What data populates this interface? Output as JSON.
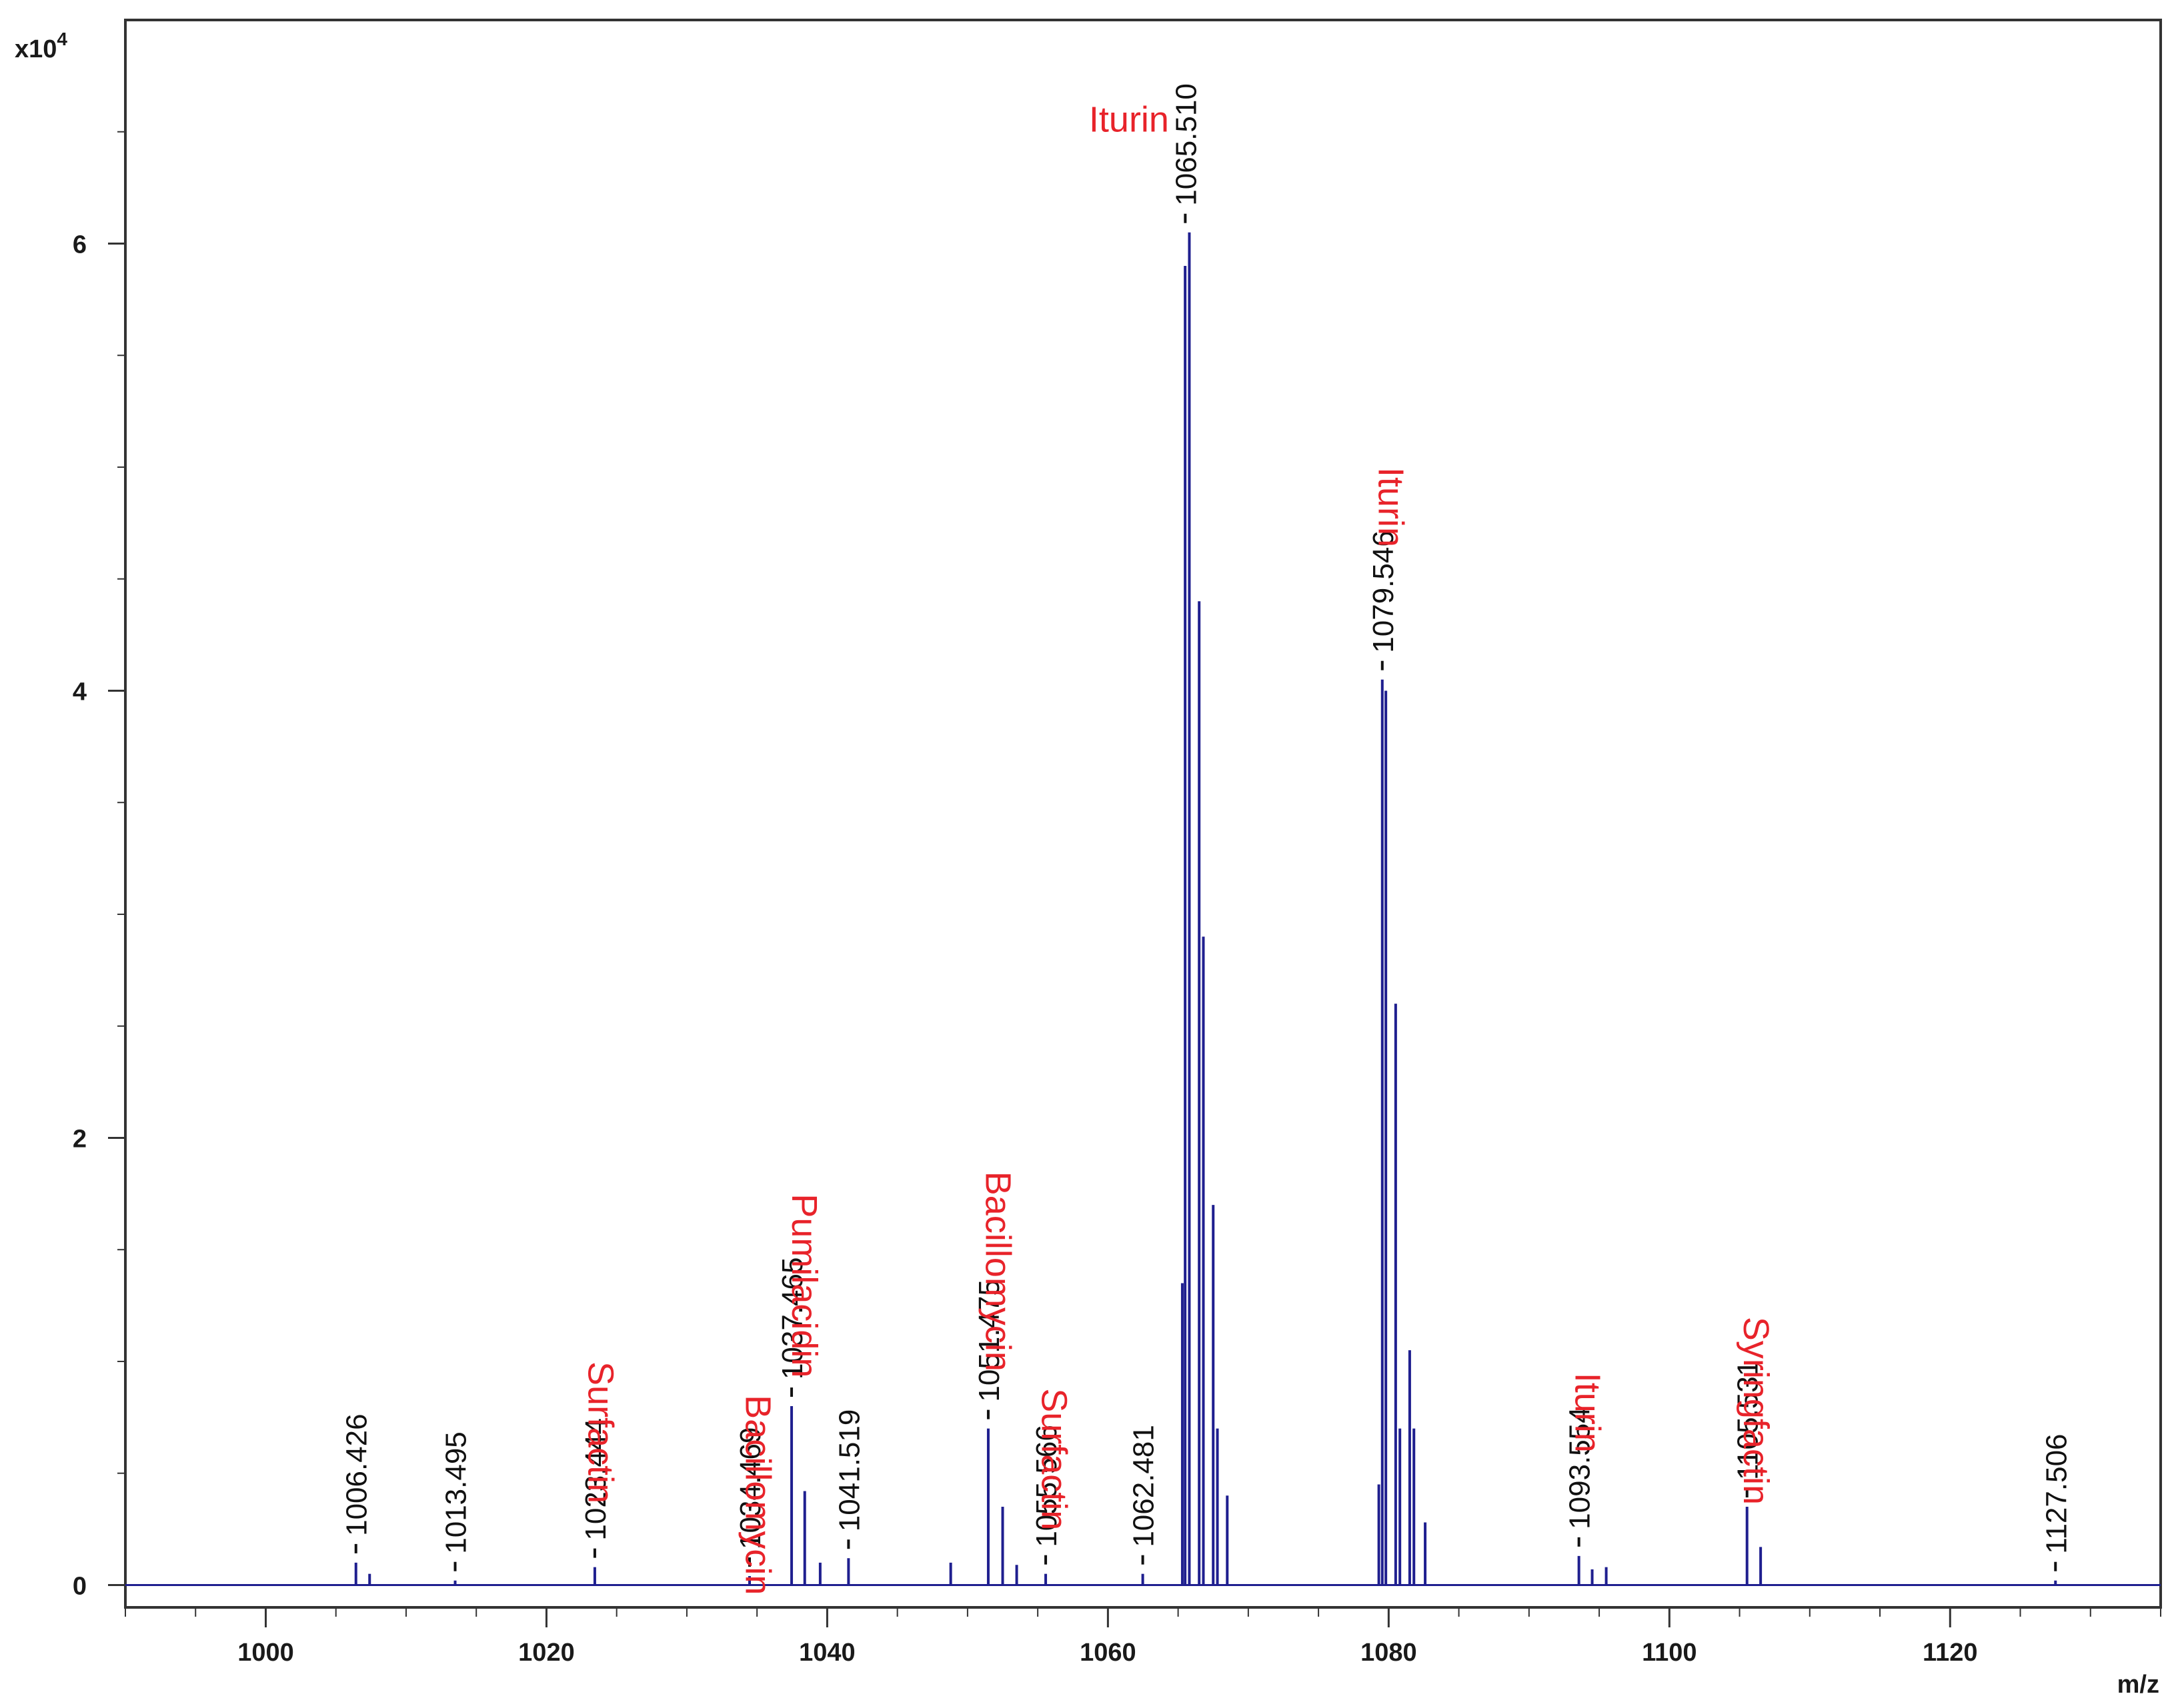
{
  "colors": {
    "trace": "#1f1f8f",
    "compound": "#e8232a",
    "axis": "#333333"
  },
  "chart_data": {
    "type": "line",
    "title": "",
    "xlabel": "m/z",
    "ylabel": "",
    "y_multiplier_label": "x10",
    "y_multiplier_exp": "4",
    "xlim": [
      990,
      1135
    ],
    "ylim": [
      -0.1,
      7.0
    ],
    "x_ticks": [
      1000,
      1020,
      1040,
      1060,
      1080,
      1100,
      1120
    ],
    "y_ticks": [
      0,
      2,
      4,
      6
    ],
    "peaks": [
      {
        "mz": 1006.426,
        "intensity": 0.1
      },
      {
        "mz": 1007.4,
        "intensity": 0.05
      },
      {
        "mz": 1013.495,
        "intensity": 0.02
      },
      {
        "mz": 1023.444,
        "intensity": 0.08
      },
      {
        "mz": 1034.469,
        "intensity": 0.04
      },
      {
        "mz": 1037.465,
        "intensity": 0.8
      },
      {
        "mz": 1038.4,
        "intensity": 0.42
      },
      {
        "mz": 1039.5,
        "intensity": 0.1
      },
      {
        "mz": 1041.519,
        "intensity": 0.12
      },
      {
        "mz": 1048.8,
        "intensity": 0.1
      },
      {
        "mz": 1051.475,
        "intensity": 0.7
      },
      {
        "mz": 1052.5,
        "intensity": 0.35
      },
      {
        "mz": 1053.5,
        "intensity": 0.09
      },
      {
        "mz": 1055.566,
        "intensity": 0.05
      },
      {
        "mz": 1062.481,
        "intensity": 0.05
      },
      {
        "mz": 1065.3,
        "intensity": 1.35
      },
      {
        "mz": 1065.5,
        "intensity": 5.9
      },
      {
        "mz": 1065.8,
        "intensity": 6.05
      },
      {
        "mz": 1066.5,
        "intensity": 4.4
      },
      {
        "mz": 1066.8,
        "intensity": 2.9
      },
      {
        "mz": 1067.5,
        "intensity": 1.7
      },
      {
        "mz": 1067.8,
        "intensity": 0.7
      },
      {
        "mz": 1068.5,
        "intensity": 0.4
      },
      {
        "mz": 1079.3,
        "intensity": 0.45
      },
      {
        "mz": 1079.546,
        "intensity": 4.05
      },
      {
        "mz": 1079.8,
        "intensity": 4.0
      },
      {
        "mz": 1080.5,
        "intensity": 2.6
      },
      {
        "mz": 1080.8,
        "intensity": 0.7
      },
      {
        "mz": 1081.5,
        "intensity": 1.05
      },
      {
        "mz": 1081.8,
        "intensity": 0.7
      },
      {
        "mz": 1082.6,
        "intensity": 0.28
      },
      {
        "mz": 1093.554,
        "intensity": 0.13
      },
      {
        "mz": 1094.5,
        "intensity": 0.07
      },
      {
        "mz": 1095.5,
        "intensity": 0.08
      },
      {
        "mz": 1105.531,
        "intensity": 0.35
      },
      {
        "mz": 1106.5,
        "intensity": 0.17
      },
      {
        "mz": 1127.506,
        "intensity": 0.02
      }
    ],
    "peak_labels": [
      {
        "text": "1006.426",
        "mz": 1006.426,
        "intensity": 0.1
      },
      {
        "text": "1013.495",
        "mz": 1013.495,
        "intensity": 0.02
      },
      {
        "text": "1023.444",
        "mz": 1023.444,
        "intensity": 0.08
      },
      {
        "text": "1034.469",
        "mz": 1034.469,
        "intensity": 0.04
      },
      {
        "text": "1037.465",
        "mz": 1037.465,
        "intensity": 0.8
      },
      {
        "text": "1041.519",
        "mz": 1041.519,
        "intensity": 0.12
      },
      {
        "text": "1051.475",
        "mz": 1051.475,
        "intensity": 0.7
      },
      {
        "text": "1055.566",
        "mz": 1055.566,
        "intensity": 0.05
      },
      {
        "text": "1062.481",
        "mz": 1062.481,
        "intensity": 0.05
      },
      {
        "text": "1065.510",
        "mz": 1065.51,
        "intensity": 6.05
      },
      {
        "text": "1079.546",
        "mz": 1079.546,
        "intensity": 4.05
      },
      {
        "text": "1093.554",
        "mz": 1093.554,
        "intensity": 0.13
      },
      {
        "text": "1105.531",
        "mz": 1105.531,
        "intensity": 0.35
      },
      {
        "text": "1127.506",
        "mz": 1127.506,
        "intensity": 0.02
      }
    ],
    "compound_labels": [
      {
        "text": "Surfactin",
        "mz": 1023.0,
        "intensity": 1.0,
        "vertical": true
      },
      {
        "text": "Bacillomycin",
        "mz": 1034.2,
        "intensity": 0.85,
        "vertical": true
      },
      {
        "text": "Pumilacidin",
        "mz": 1037.5,
        "intensity": 1.75,
        "vertical": true
      },
      {
        "text": "Bacillomycin",
        "mz": 1051.3,
        "intensity": 1.85,
        "vertical": true
      },
      {
        "text": "Surfactin",
        "mz": 1055.3,
        "intensity": 0.88,
        "vertical": true
      },
      {
        "text": "Iturin",
        "mz": 1061.5,
        "intensity": 6.5,
        "vertical": false
      },
      {
        "text": "Iturin",
        "mz": 1079.3,
        "intensity": 5.0,
        "vertical": true
      },
      {
        "text": "Iturin",
        "mz": 1093.3,
        "intensity": 0.95,
        "vertical": true
      },
      {
        "text": "Syringfactin",
        "mz": 1105.3,
        "intensity": 1.2,
        "vertical": true
      }
    ]
  }
}
